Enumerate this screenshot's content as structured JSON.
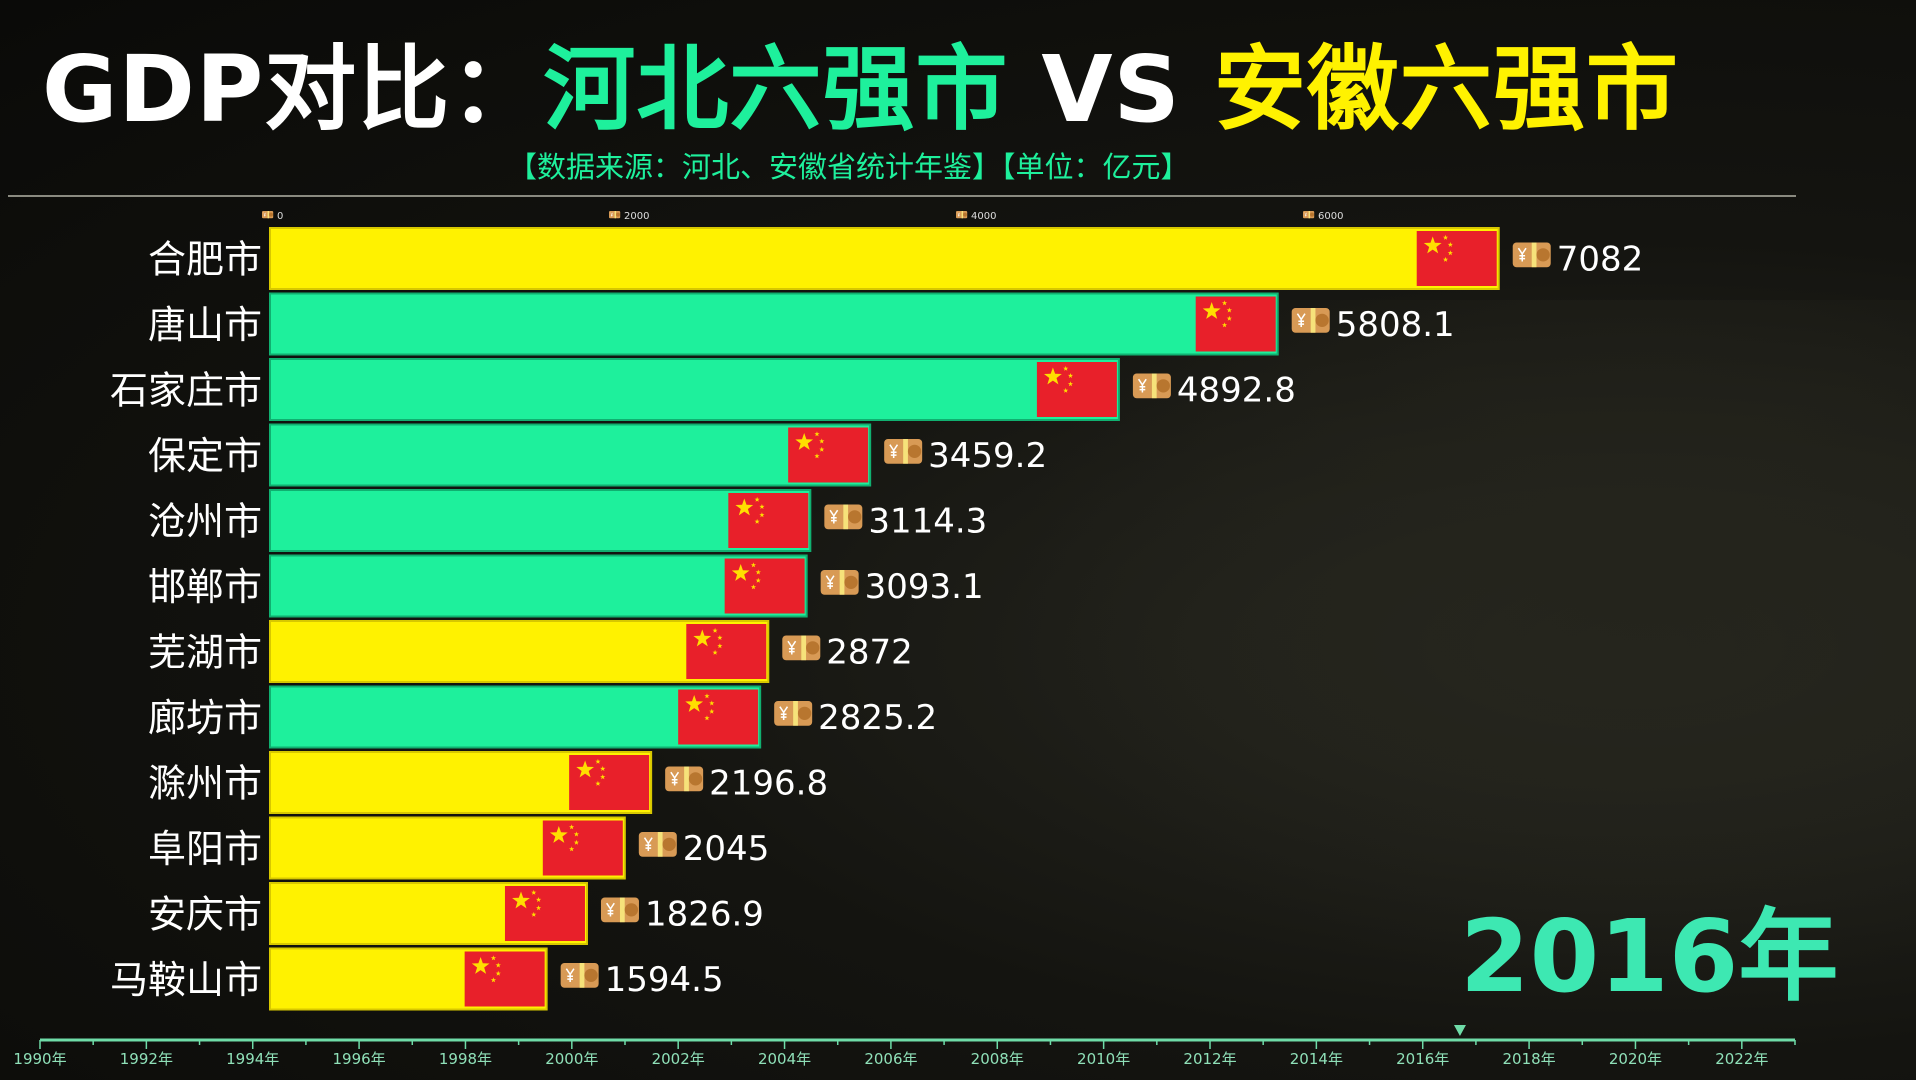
{
  "title": {
    "prefix": "GDP对比：",
    "hebei": "河北六强市",
    "vs": " VS ",
    "anhui": "安徽六强市"
  },
  "subtitle": "【数据来源：河北、安徽省统计年鉴】【单位：亿元】",
  "current_year_label": "2016年",
  "colors": {
    "hebei": "#1ef09c",
    "anhui": "#fff200",
    "flag": "#e8202a"
  },
  "chart_data": {
    "type": "bar",
    "orientation": "horizontal",
    "unit": "亿元",
    "xlim": [
      0,
      7082
    ],
    "x_ticks": [
      0,
      2000,
      4000,
      6000
    ],
    "categories": [
      "合肥市",
      "唐山市",
      "石家庄市",
      "保定市",
      "沧州市",
      "邯郸市",
      "芜湖市",
      "廊坊市",
      "滁州市",
      "阜阳市",
      "安庆市",
      "马鞍山市"
    ],
    "values": [
      7082,
      5808.1,
      4892.8,
      3459.2,
      3114.3,
      3093.1,
      2872,
      2825.2,
      2196.8,
      2045,
      1826.9,
      1594.5
    ],
    "value_labels": [
      "7082",
      "5808.1",
      "4892.8",
      "3459.2",
      "3114.3",
      "3093.1",
      "2872",
      "2825.2",
      "2196.8",
      "2045",
      "1826.9",
      "1594.5"
    ],
    "groups": [
      "anhui",
      "hebei",
      "hebei",
      "hebei",
      "hebei",
      "hebei",
      "anhui",
      "hebei",
      "anhui",
      "anhui",
      "anhui",
      "anhui"
    ],
    "icons": {
      "bar_end": "china-flag-icon",
      "value": "money-icon"
    }
  },
  "timeline": {
    "labels": [
      "1990年",
      "1992年",
      "1994年",
      "1996年",
      "1998年",
      "2000年",
      "2002年",
      "2004年",
      "2006年",
      "2008年",
      "2010年",
      "2012年",
      "2014年",
      "2016年",
      "2018年",
      "2020年",
      "2022年"
    ],
    "start": 1990,
    "end": 2023,
    "current": 2016.7
  }
}
